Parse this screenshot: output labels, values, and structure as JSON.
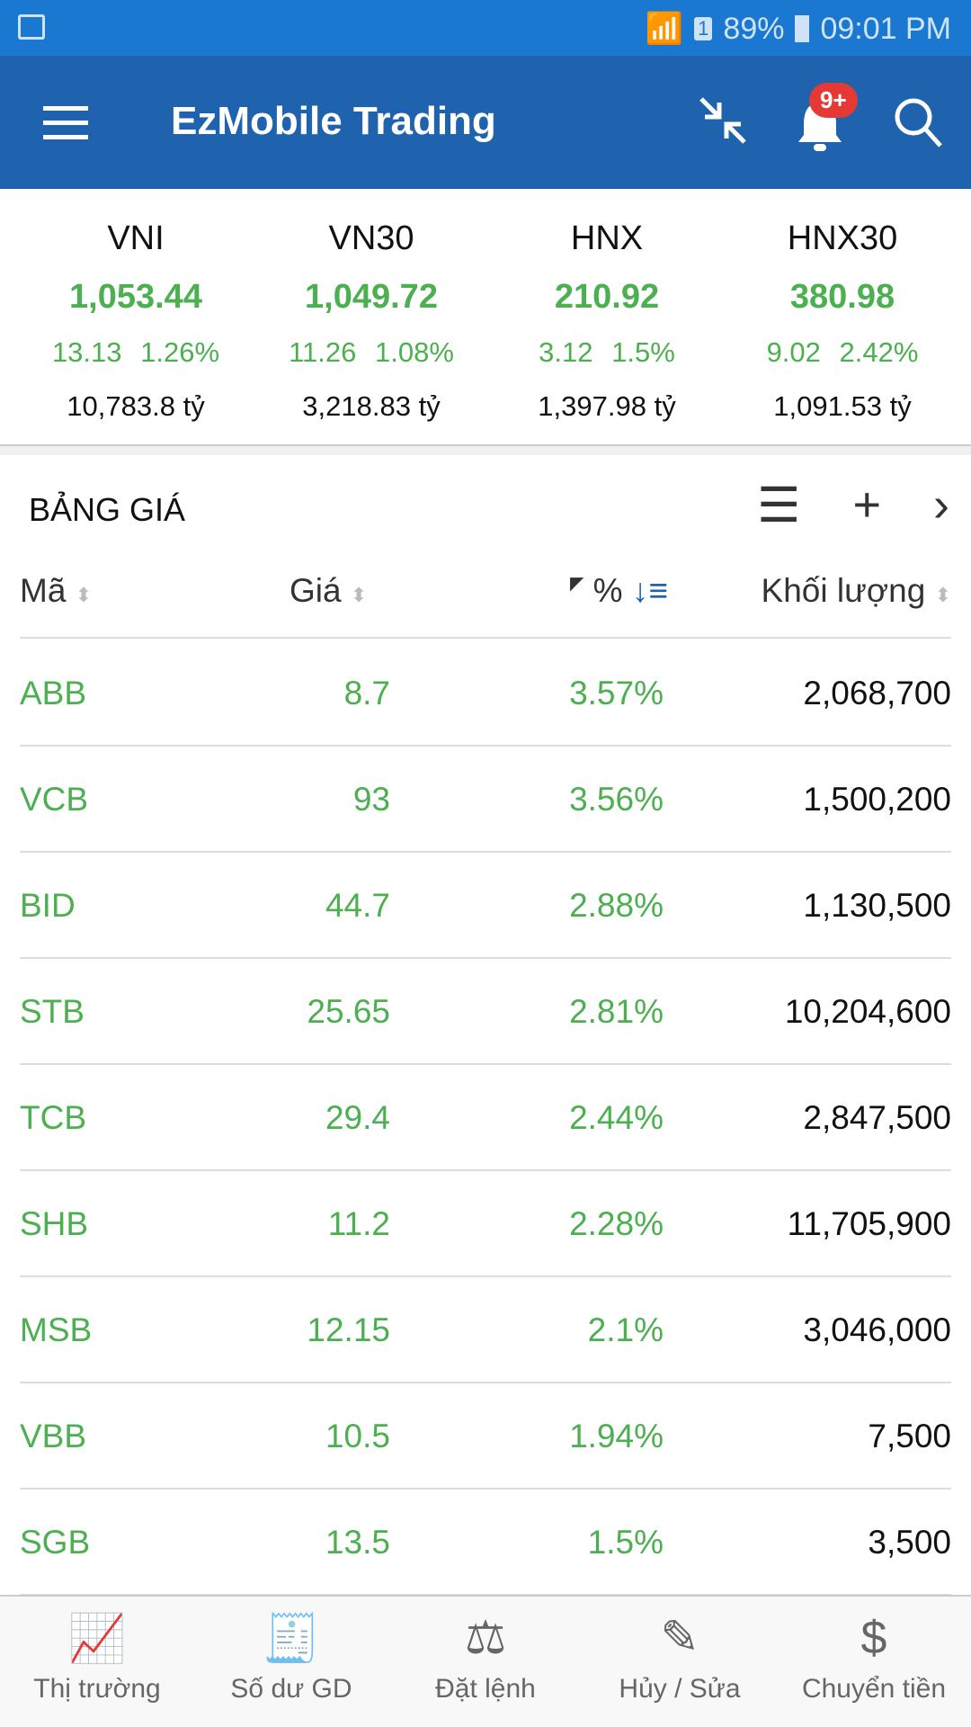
{
  "status": {
    "battery": "89%",
    "time": "09:01 PM",
    "sim": "1"
  },
  "app": {
    "title": "EzMobile Trading",
    "badge": "9+"
  },
  "indices": [
    {
      "name": "VNI",
      "value": "1,053.44",
      "change": "13.13",
      "pct": "1.26%",
      "turnover": "10,783.8 tỷ"
    },
    {
      "name": "VN30",
      "value": "1,049.72",
      "change": "11.26",
      "pct": "1.08%",
      "turnover": "3,218.83 tỷ"
    },
    {
      "name": "HNX",
      "value": "210.92",
      "change": "3.12",
      "pct": "1.5%",
      "turnover": "1,397.98 tỷ"
    },
    {
      "name": "HNX30",
      "value": "380.98",
      "change": "9.02",
      "pct": "2.42%",
      "turnover": "1,091.53 tỷ"
    }
  ],
  "board": {
    "title": "BẢNG GIÁ",
    "columns": {
      "code": "Mã",
      "price": "Giá",
      "pct": "%",
      "volume": "Khối lượng"
    }
  },
  "rows": [
    {
      "code": "ABB",
      "price": "8.7",
      "pct": "3.57%",
      "volume": "2,068,700"
    },
    {
      "code": "VCB",
      "price": "93",
      "pct": "3.56%",
      "volume": "1,500,200"
    },
    {
      "code": "BID",
      "price": "44.7",
      "pct": "2.88%",
      "volume": "1,130,500"
    },
    {
      "code": "STB",
      "price": "25.65",
      "pct": "2.81%",
      "volume": "10,204,600"
    },
    {
      "code": "TCB",
      "price": "29.4",
      "pct": "2.44%",
      "volume": "2,847,500"
    },
    {
      "code": "SHB",
      "price": "11.2",
      "pct": "2.28%",
      "volume": "11,705,900"
    },
    {
      "code": "MSB",
      "price": "12.15",
      "pct": "2.1%",
      "volume": "3,046,000"
    },
    {
      "code": "VBB",
      "price": "10.5",
      "pct": "1.94%",
      "volume": "7,500"
    },
    {
      "code": "SGB",
      "price": "13.5",
      "pct": "1.5%",
      "volume": "3,500"
    }
  ],
  "nav": [
    "Thị trường",
    "Số dư GD",
    "Đặt lệnh",
    "Hủy / Sửa",
    "Chuyển tiền"
  ]
}
